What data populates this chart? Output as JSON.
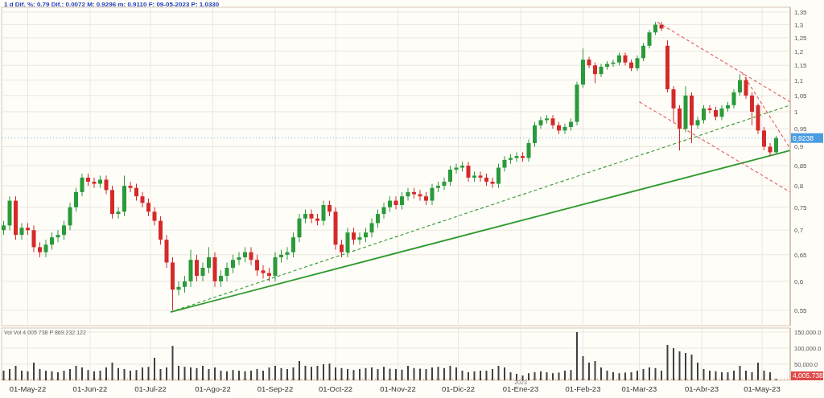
{
  "chart_data": [
    {
      "type": "candlestick",
      "title": "1 d Dif. %: 0.79 Dif.: 0.0072 M: 0.9296 m: 0.9110 F: 09-05-2023 P: 1.0330",
      "log": true,
      "grid": true,
      "tick_labels": "y",
      "colors": [
        "#2a9a3a",
        "#2a9a3a",
        "#d42a2a",
        "#2a9a3a",
        "#d42a2a",
        "#d42a2a",
        "#d42a2a",
        "#2a9a3a",
        "#2a9a3a",
        "#2a9a3a",
        "#2a9a3a",
        "#2a9a3a",
        "#2a9a3a",
        "#2a9a3a",
        "#d42a2a",
        "#d42a2a",
        "#2a9a3a",
        "#d42a2a",
        "#d42a2a",
        "#2a9a3a",
        "#2a9a3a",
        "#d42a2a",
        "#d42a2a",
        "#d42a2a",
        "#d42a2a",
        "#d42a2a",
        "#d42a2a",
        "#d42a2a",
        "#d42a2a",
        "#2a9a3a",
        "#2a9a3a",
        "#2a9a3a",
        "#d42a2a",
        "#2a9a3a",
        "#2a9a3a",
        "#d42a2a",
        "#2a9a3a",
        "#2a9a3a",
        "#2a9a3a",
        "#2a9a3a",
        "#2a9a3a",
        "#d42a2a",
        "#d42a2a",
        "#d42a2a",
        "#d42a2a",
        "#2a9a3a",
        "#2a9a3a",
        "#2a9a3a",
        "#2a9a3a",
        "#2a9a3a",
        "#2a9a3a",
        "#d42a2a",
        "#d42a2a",
        "#2a9a3a",
        "#d42a2a",
        "#d42a2a",
        "#d42a2a",
        "#2a9a3a",
        "#d42a2a",
        "#2a9a3a",
        "#2a9a3a",
        "#2a9a3a",
        "#2a9a3a",
        "#2a9a3a",
        "#2a9a3a",
        "#d42a2a",
        "#2a9a3a",
        "#2a9a3a",
        "#d42a2a",
        "#d42a2a",
        "#d42a2a",
        "#2a9a3a",
        "#2a9a3a",
        "#2a9a3a",
        "#2a9a3a",
        "#2a9a3a",
        "#2a9a3a",
        "#d42a2a",
        "#2a9a3a",
        "#d42a2a",
        "#d42a2a",
        "#d42a2a",
        "#2a9a3a",
        "#2a9a3a",
        "#2a9a3a",
        "#2a9a3a",
        "#d42a2a",
        "#2a9a3a",
        "#2a9a3a",
        "#2a9a3a",
        "#2a9a3a",
        "#d42a2a",
        "#d42a2a",
        "#2a9a3a",
        "#2a9a3a",
        "#2a9a3a",
        "#2a9a3a",
        "#d42a2a",
        "#d42a2a",
        "#2a9a3a",
        "#2a9a3a",
        "#2a9a3a",
        "#2a9a3a",
        "#d42a2a",
        "#d42a2a",
        "#2a9a3a",
        "#2a9a3a",
        "#2a9a3a",
        "#2a9a3a",
        "#d42a2a",
        "#d42a2a",
        "#d42a2a",
        "#d42a2a",
        "#2a9a3a",
        "#d42a2a",
        "#2a9a3a",
        "#2a9a3a",
        "#d42a2a",
        "#d42a2a",
        "#2a9a3a",
        "#2a9a3a",
        "#2a9a3a",
        "#2a9a3a",
        "#d42a2a",
        "#d42a2a",
        "#d42a2a",
        "#d42a2a",
        "#d42a2a",
        "#2a9a3a"
      ],
      "xlim": [
        "2022-04-18",
        "2023-05-15"
      ],
      "xticks": [
        {
          "value": "2022-05-01",
          "label": null
        },
        {
          "value": "2022-06-01",
          "label": null
        },
        {
          "value": "2022-07-01",
          "label": null
        },
        {
          "value": "2022-08-01",
          "label": null
        },
        {
          "value": "2022-09-01",
          "label": null
        },
        {
          "value": "2022-10-01",
          "label": null
        },
        {
          "value": "2022-11-01",
          "label": null
        },
        {
          "value": "2022-12-01",
          "label": null
        },
        {
          "value": "2023-01-01",
          "label": null
        },
        {
          "value": "2023-02-01",
          "label": null
        },
        {
          "value": "2023-03-01",
          "label": null
        },
        {
          "value": "2023-04-01",
          "label": null
        },
        {
          "value": "2023-05-01",
          "label": null
        }
      ],
      "ylim": [
        0.525,
        1.37
      ],
      "yticks": [
        {
          "value": 0.55,
          "label": "0,55"
        },
        {
          "value": 0.6,
          "label": "0,6"
        },
        {
          "value": 0.65,
          "label": "0,65"
        },
        {
          "value": 0.7,
          "label": "0,7"
        },
        {
          "value": 0.75,
          "label": "0,75"
        },
        {
          "value": 0.8,
          "label": "0,8"
        },
        {
          "value": 0.85,
          "label": "0,85"
        },
        {
          "value": 0.9,
          "label": "0,9"
        },
        {
          "value": 0.95,
          "label": "0,95"
        },
        {
          "value": 1,
          "label": "1"
        },
        {
          "value": 1.05,
          "label": "1,05"
        },
        {
          "value": 1.1,
          "label": "1,1"
        },
        {
          "value": 1.15,
          "label": "1,15"
        },
        {
          "value": 1.2,
          "label": "1,2"
        },
        {
          "value": 1.25,
          "label": "1,25"
        },
        {
          "value": 1.3,
          "label": "1,3"
        },
        {
          "value": 1.35,
          "label": "1,35"
        }
      ],
      "ref_lines": [
        {
          "axis": "y",
          "value": 0.9238,
          "label": "0,9238",
          "color": "#4a9de0"
        }
      ],
      "x": [
        "2022-04-19",
        "2022-04-22",
        "2022-04-25",
        "2022-04-28",
        "2022-05-01",
        "2022-05-04",
        "2022-05-07",
        "2022-05-10",
        "2022-05-13",
        "2022-05-16",
        "2022-05-19",
        "2022-05-22",
        "2022-05-25",
        "2022-05-28",
        "2022-05-31",
        "2022-06-03",
        "2022-06-06",
        "2022-06-09",
        "2022-06-12",
        "2022-06-15",
        "2022-06-18",
        "2022-06-21",
        "2022-06-24",
        "2022-06-27",
        "2022-06-30",
        "2022-07-03",
        "2022-07-06",
        "2022-07-09",
        "2022-07-12",
        "2022-07-15",
        "2022-07-18",
        "2022-07-21",
        "2022-07-24",
        "2022-07-27",
        "2022-07-30",
        "2022-08-02",
        "2022-08-05",
        "2022-08-08",
        "2022-08-11",
        "2022-08-14",
        "2022-08-17",
        "2022-08-20",
        "2022-08-23",
        "2022-08-26",
        "2022-08-29",
        "2022-09-01",
        "2022-09-04",
        "2022-09-07",
        "2022-09-10",
        "2022-09-13",
        "2022-09-16",
        "2022-09-19",
        "2022-09-22",
        "2022-09-25",
        "2022-09-28",
        "2022-10-01",
        "2022-10-04",
        "2022-10-07",
        "2022-10-10",
        "2022-10-13",
        "2022-10-16",
        "2022-10-19",
        "2022-10-22",
        "2022-10-25",
        "2022-10-28",
        "2022-10-31",
        "2022-11-03",
        "2022-11-06",
        "2022-11-09",
        "2022-11-12",
        "2022-11-15",
        "2022-11-18",
        "2022-11-21",
        "2022-11-24",
        "2022-11-27",
        "2022-11-30",
        "2022-12-03",
        "2022-12-06",
        "2022-12-09",
        "2022-12-12",
        "2022-12-15",
        "2022-12-18",
        "2022-12-21",
        "2022-12-24",
        "2022-12-27",
        "2022-12-30",
        "2023-01-02",
        "2023-01-05",
        "2023-01-08",
        "2023-01-11",
        "2023-01-14",
        "2023-01-17",
        "2023-01-20",
        "2023-01-23",
        "2023-01-26",
        "2023-01-29",
        "2023-02-01",
        "2023-02-04",
        "2023-02-07",
        "2023-02-10",
        "2023-02-13",
        "2023-02-16",
        "2023-02-19",
        "2023-02-22",
        "2023-02-25",
        "2023-02-28",
        "2023-03-03",
        "2023-03-06",
        "2023-03-09",
        "2023-03-12",
        "2023-03-15",
        "2023-03-18",
        "2023-03-21",
        "2023-03-24",
        "2023-03-27",
        "2023-03-30",
        "2023-04-02",
        "2023-04-05",
        "2023-04-08",
        "2023-04-11",
        "2023-04-14",
        "2023-04-17",
        "2023-04-20",
        "2023-04-23",
        "2023-04-26",
        "2023-04-29",
        "2023-05-02",
        "2023-05-05",
        "2023-05-08"
      ],
      "ohlc": [
        [
          0.7,
          0.72,
          0.69,
          0.71
        ],
        [
          0.71,
          0.775,
          0.7,
          0.765
        ],
        [
          0.765,
          0.775,
          0.68,
          0.69
        ],
        [
          0.69,
          0.715,
          0.68,
          0.705
        ],
        [
          0.705,
          0.715,
          0.69,
          0.7
        ],
        [
          0.7,
          0.71,
          0.655,
          0.665
        ],
        [
          0.665,
          0.675,
          0.645,
          0.655
        ],
        [
          0.655,
          0.68,
          0.645,
          0.67
        ],
        [
          0.67,
          0.695,
          0.66,
          0.685
        ],
        [
          0.685,
          0.7,
          0.675,
          0.69
        ],
        [
          0.69,
          0.72,
          0.68,
          0.71
        ],
        [
          0.71,
          0.76,
          0.7,
          0.75
        ],
        [
          0.75,
          0.795,
          0.74,
          0.785
        ],
        [
          0.785,
          0.83,
          0.775,
          0.82
        ],
        [
          0.82,
          0.83,
          0.8,
          0.81
        ],
        [
          0.81,
          0.82,
          0.795,
          0.805
        ],
        [
          0.805,
          0.825,
          0.795,
          0.815
        ],
        [
          0.815,
          0.825,
          0.78,
          0.79
        ],
        [
          0.79,
          0.8,
          0.725,
          0.735
        ],
        [
          0.735,
          0.75,
          0.725,
          0.74
        ],
        [
          0.74,
          0.825,
          0.73,
          0.8
        ],
        [
          0.8,
          0.81,
          0.785,
          0.795
        ],
        [
          0.795,
          0.805,
          0.765,
          0.775
        ],
        [
          0.775,
          0.785,
          0.75,
          0.76
        ],
        [
          0.76,
          0.77,
          0.73,
          0.74
        ],
        [
          0.74,
          0.75,
          0.71,
          0.72
        ],
        [
          0.72,
          0.73,
          0.67,
          0.68
        ],
        [
          0.68,
          0.69,
          0.625,
          0.635
        ],
        [
          0.635,
          0.645,
          0.55,
          0.585
        ],
        [
          0.585,
          0.6,
          0.575,
          0.59
        ],
        [
          0.59,
          0.61,
          0.58,
          0.6
        ],
        [
          0.6,
          0.66,
          0.59,
          0.64
        ],
        [
          0.64,
          0.65,
          0.6,
          0.61
        ],
        [
          0.61,
          0.635,
          0.6,
          0.625
        ],
        [
          0.625,
          0.665,
          0.615,
          0.645
        ],
        [
          0.645,
          0.655,
          0.59,
          0.6
        ],
        [
          0.6,
          0.62,
          0.59,
          0.61
        ],
        [
          0.61,
          0.635,
          0.6,
          0.625
        ],
        [
          0.625,
          0.65,
          0.615,
          0.64
        ],
        [
          0.64,
          0.655,
          0.63,
          0.645
        ],
        [
          0.645,
          0.665,
          0.635,
          0.655
        ],
        [
          0.655,
          0.665,
          0.63,
          0.64
        ],
        [
          0.64,
          0.65,
          0.61,
          0.62
        ],
        [
          0.62,
          0.63,
          0.605,
          0.615
        ],
        [
          0.615,
          0.625,
          0.6,
          0.61
        ],
        [
          0.61,
          0.655,
          0.6,
          0.645
        ],
        [
          0.645,
          0.66,
          0.635,
          0.65
        ],
        [
          0.65,
          0.665,
          0.64,
          0.655
        ],
        [
          0.655,
          0.695,
          0.645,
          0.685
        ],
        [
          0.685,
          0.735,
          0.675,
          0.725
        ],
        [
          0.725,
          0.745,
          0.715,
          0.735
        ],
        [
          0.735,
          0.745,
          0.715,
          0.725
        ],
        [
          0.725,
          0.735,
          0.71,
          0.72
        ],
        [
          0.72,
          0.765,
          0.71,
          0.755
        ],
        [
          0.755,
          0.765,
          0.73,
          0.74
        ],
        [
          0.74,
          0.75,
          0.66,
          0.67
        ],
        [
          0.67,
          0.68,
          0.645,
          0.655
        ],
        [
          0.655,
          0.705,
          0.645,
          0.695
        ],
        [
          0.695,
          0.705,
          0.67,
          0.68
        ],
        [
          0.68,
          0.695,
          0.67,
          0.685
        ],
        [
          0.685,
          0.705,
          0.675,
          0.695
        ],
        [
          0.695,
          0.725,
          0.685,
          0.715
        ],
        [
          0.715,
          0.745,
          0.705,
          0.735
        ],
        [
          0.735,
          0.76,
          0.725,
          0.75
        ],
        [
          0.75,
          0.775,
          0.74,
          0.765
        ],
        [
          0.765,
          0.775,
          0.745,
          0.755
        ],
        [
          0.755,
          0.785,
          0.745,
          0.775
        ],
        [
          0.775,
          0.795,
          0.765,
          0.785
        ],
        [
          0.785,
          0.795,
          0.77,
          0.78
        ],
        [
          0.78,
          0.79,
          0.765,
          0.775
        ],
        [
          0.775,
          0.785,
          0.755,
          0.765
        ],
        [
          0.765,
          0.805,
          0.755,
          0.795
        ],
        [
          0.795,
          0.81,
          0.785,
          0.8
        ],
        [
          0.8,
          0.82,
          0.79,
          0.81
        ],
        [
          0.81,
          0.85,
          0.8,
          0.84
        ],
        [
          0.84,
          0.855,
          0.83,
          0.845
        ],
        [
          0.845,
          0.86,
          0.835,
          0.85
        ],
        [
          0.85,
          0.86,
          0.81,
          0.82
        ],
        [
          0.82,
          0.835,
          0.81,
          0.825
        ],
        [
          0.825,
          0.835,
          0.81,
          0.82
        ],
        [
          0.82,
          0.83,
          0.8,
          0.81
        ],
        [
          0.81,
          0.82,
          0.795,
          0.805
        ],
        [
          0.805,
          0.855,
          0.795,
          0.845
        ],
        [
          0.845,
          0.875,
          0.835,
          0.865
        ],
        [
          0.865,
          0.88,
          0.855,
          0.87
        ],
        [
          0.87,
          0.885,
          0.86,
          0.875
        ],
        [
          0.875,
          0.885,
          0.86,
          0.87
        ],
        [
          0.87,
          0.92,
          0.86,
          0.91
        ],
        [
          0.91,
          0.97,
          0.9,
          0.96
        ],
        [
          0.96,
          0.985,
          0.95,
          0.975
        ],
        [
          0.975,
          0.99,
          0.965,
          0.98
        ],
        [
          0.98,
          0.99,
          0.95,
          0.96
        ],
        [
          0.96,
          0.97,
          0.935,
          0.945
        ],
        [
          0.945,
          0.965,
          0.935,
          0.955
        ],
        [
          0.955,
          0.98,
          0.945,
          0.97
        ],
        [
          0.97,
          1.095,
          0.96,
          1.085
        ],
        [
          1.085,
          1.21,
          1.075,
          1.17
        ],
        [
          1.17,
          1.18,
          1.14,
          1.15
        ],
        [
          1.15,
          1.16,
          1.09,
          1.12
        ],
        [
          1.12,
          1.155,
          1.11,
          1.145
        ],
        [
          1.145,
          1.165,
          1.135,
          1.155
        ],
        [
          1.155,
          1.17,
          1.145,
          1.16
        ],
        [
          1.16,
          1.195,
          1.15,
          1.185
        ],
        [
          1.185,
          1.195,
          1.15,
          1.16
        ],
        [
          1.16,
          1.17,
          1.13,
          1.14
        ],
        [
          1.14,
          1.185,
          1.13,
          1.175
        ],
        [
          1.175,
          1.23,
          1.165,
          1.22
        ],
        [
          1.22,
          1.28,
          1.21,
          1.27
        ],
        [
          1.27,
          1.31,
          1.26,
          1.3
        ],
        [
          1.3,
          1.31,
          1.275,
          1.285
        ],
        [
          1.22,
          1.24,
          1.06,
          1.07
        ],
        [
          1.07,
          1.08,
          0.97,
          1.01
        ],
        [
          1.01,
          1.02,
          0.89,
          0.95
        ],
        [
          0.95,
          1.08,
          0.94,
          1.05
        ],
        [
          1.05,
          1.06,
          0.91,
          0.96
        ],
        [
          0.96,
          0.985,
          0.95,
          0.975
        ],
        [
          0.975,
          1.02,
          0.965,
          1.01
        ],
        [
          1.01,
          1.02,
          0.995,
          1.005
        ],
        [
          1.005,
          1.015,
          0.975,
          0.985
        ],
        [
          0.985,
          1.02,
          0.975,
          1.01
        ],
        [
          1.01,
          1.03,
          1.0,
          1.02
        ],
        [
          1.02,
          1.07,
          1.01,
          1.06
        ],
        [
          1.06,
          1.12,
          1.05,
          1.1
        ],
        [
          1.1,
          1.11,
          1.04,
          1.05
        ],
        [
          1.05,
          1.06,
          0.96,
          1.0
        ],
        [
          1.02,
          1.025,
          0.935,
          0.945
        ],
        [
          0.945,
          0.955,
          0.89,
          0.9
        ],
        [
          0.9,
          0.91,
          0.875,
          0.885
        ],
        [
          0.885,
          0.93,
          0.88,
          0.9238
        ]
      ],
      "series": [
        {
          "type": "line",
          "x": [
            "2022-07-11",
            "2023-05-15"
          ],
          "values": [
            0.547,
            0.89
          ],
          "color": "#2e9a2e",
          "line_style": "solid"
        },
        {
          "type": "line",
          "x": [
            "2022-07-11",
            "2023-05-15"
          ],
          "values": [
            0.547,
            1.02
          ],
          "color": "#2e9a2e",
          "line_style": "dashed"
        },
        {
          "type": "line",
          "x": [
            "2023-03-10",
            "2023-05-15"
          ],
          "values": [
            1.31,
            1.03
          ],
          "color": "#e05a5a",
          "line_style": "dashed"
        },
        {
          "type": "line",
          "x": [
            "2023-04-21",
            "2023-05-15"
          ],
          "values": [
            1.125,
            0.895
          ],
          "color": "#e05a5a",
          "line_style": "dashed"
        },
        {
          "type": "line",
          "x": [
            "2023-03-01",
            "2023-05-15"
          ],
          "values": [
            1.03,
            0.785
          ],
          "color": "#e05a5a",
          "line_style": "dashed"
        }
      ]
    },
    {
      "type": "bar",
      "title": "Vol Vol 4 005 738 P 869.232.122",
      "grid": true,
      "color": "#404040",
      "annotations": [
        "2023"
      ],
      "xlim": [
        "2022-04-18",
        "2023-05-15"
      ],
      "xticks": [
        {
          "value": "2022-05-01",
          "label": "01-May-22"
        },
        {
          "value": "2022-06-01",
          "label": "01-Jun-22"
        },
        {
          "value": "2022-07-01",
          "label": "01-Jul-22"
        },
        {
          "value": "2022-08-01",
          "label": "01-Ago-22"
        },
        {
          "value": "2022-09-01",
          "label": "01-Sep-22"
        },
        {
          "value": "2022-10-01",
          "label": "01-Oct-22"
        },
        {
          "value": "2022-11-01",
          "label": "01-Nov-22"
        },
        {
          "value": "2022-12-01",
          "label": "01-Dic-22"
        },
        {
          "value": "2023-01-01",
          "label": "01-Ene-23"
        },
        {
          "value": "2023-02-01",
          "label": "01-Feb-23"
        },
        {
          "value": "2023-03-01",
          "label": "01-Mar-23"
        },
        {
          "value": "2023-04-01",
          "label": "01-Abr-23"
        },
        {
          "value": "2023-05-01",
          "label": "01-May-23"
        }
      ],
      "ylim": [
        0,
        162500
      ],
      "yticks": [
        {
          "value": 50000,
          "label": "50,000.0"
        },
        {
          "value": 100000,
          "label": "100,000.0"
        },
        {
          "value": 150000,
          "label": "150,000.0"
        }
      ],
      "ref_lines": [
        {
          "axis": "y",
          "value": 4005.738,
          "label": "4,005.738",
          "color": "#e04848"
        }
      ],
      "x": [
        "2022-04-19",
        "2022-04-22",
        "2022-04-25",
        "2022-04-28",
        "2022-05-01",
        "2022-05-04",
        "2022-05-07",
        "2022-05-10",
        "2022-05-13",
        "2022-05-16",
        "2022-05-19",
        "2022-05-22",
        "2022-05-25",
        "2022-05-28",
        "2022-05-31",
        "2022-06-03",
        "2022-06-06",
        "2022-06-09",
        "2022-06-12",
        "2022-06-15",
        "2022-06-18",
        "2022-06-21",
        "2022-06-24",
        "2022-06-27",
        "2022-06-30",
        "2022-07-03",
        "2022-07-06",
        "2022-07-09",
        "2022-07-12",
        "2022-07-15",
        "2022-07-18",
        "2022-07-21",
        "2022-07-24",
        "2022-07-27",
        "2022-07-30",
        "2022-08-02",
        "2022-08-05",
        "2022-08-08",
        "2022-08-11",
        "2022-08-14",
        "2022-08-17",
        "2022-08-20",
        "2022-08-23",
        "2022-08-26",
        "2022-08-29",
        "2022-09-01",
        "2022-09-04",
        "2022-09-07",
        "2022-09-10",
        "2022-09-13",
        "2022-09-16",
        "2022-09-19",
        "2022-09-22",
        "2022-09-25",
        "2022-09-28",
        "2022-10-01",
        "2022-10-04",
        "2022-10-07",
        "2022-10-10",
        "2022-10-13",
        "2022-10-16",
        "2022-10-19",
        "2022-10-22",
        "2022-10-25",
        "2022-10-28",
        "2022-10-31",
        "2022-11-03",
        "2022-11-06",
        "2022-11-09",
        "2022-11-12",
        "2022-11-15",
        "2022-11-18",
        "2022-11-21",
        "2022-11-24",
        "2022-11-27",
        "2022-11-30",
        "2022-12-03",
        "2022-12-06",
        "2022-12-09",
        "2022-12-12",
        "2022-12-15",
        "2022-12-18",
        "2022-12-21",
        "2022-12-24",
        "2022-12-27",
        "2022-12-30",
        "2023-01-02",
        "2023-01-05",
        "2023-01-08",
        "2023-01-11",
        "2023-01-14",
        "2023-01-17",
        "2023-01-20",
        "2023-01-23",
        "2023-01-26",
        "2023-01-29",
        "2023-02-01",
        "2023-02-04",
        "2023-02-07",
        "2023-02-10",
        "2023-02-13",
        "2023-02-16",
        "2023-02-19",
        "2023-02-22",
        "2023-02-25",
        "2023-02-28",
        "2023-03-03",
        "2023-03-06",
        "2023-03-09",
        "2023-03-12",
        "2023-03-15",
        "2023-03-18",
        "2023-03-21",
        "2023-03-24",
        "2023-03-27",
        "2023-03-30",
        "2023-04-02",
        "2023-04-05",
        "2023-04-08",
        "2023-04-11",
        "2023-04-14",
        "2023-04-17",
        "2023-04-20",
        "2023-04-23",
        "2023-04-26",
        "2023-04-29",
        "2023-05-02",
        "2023-05-05",
        "2023-05-08"
      ],
      "values": [
        30000,
        35000,
        45000,
        30000,
        28000,
        55000,
        35000,
        30000,
        28000,
        25000,
        30000,
        35000,
        45000,
        40000,
        32000,
        28000,
        30000,
        40000,
        55000,
        38000,
        35000,
        30000,
        32000,
        40000,
        42000,
        70000,
        35000,
        40000,
        107000,
        45000,
        42000,
        40000,
        38000,
        45000,
        35000,
        40000,
        30000,
        28000,
        32000,
        30000,
        28000,
        30000,
        35000,
        30000,
        40000,
        45000,
        38000,
        35000,
        40000,
        60000,
        45000,
        42000,
        45000,
        50000,
        52000,
        40000,
        38000,
        35000,
        32000,
        35000,
        38000,
        40000,
        35000,
        42000,
        36000,
        35000,
        33000,
        45000,
        38000,
        36000,
        35000,
        40000,
        42000,
        38000,
        45000,
        40000,
        30000,
        25000,
        28000,
        30000,
        30000,
        35000,
        45000,
        40000,
        25000,
        20000,
        15000,
        22000,
        25000,
        28000,
        25000,
        22000,
        24000,
        30000,
        32000,
        150000,
        75000,
        55000,
        60000,
        40000,
        30000,
        25000,
        22000,
        24000,
        25000,
        30000,
        35000,
        40000,
        38000,
        30000,
        110000,
        100000,
        90000,
        85000,
        80000,
        55000,
        35000,
        30000,
        28000,
        25000,
        25000,
        30000,
        45000,
        30000,
        25000,
        55000,
        30000,
        25000,
        4005.738
      ]
    }
  ]
}
